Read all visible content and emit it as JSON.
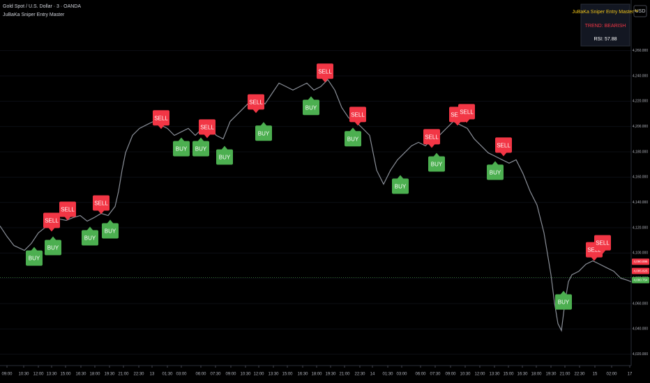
{
  "chart_data": {
    "type": "line",
    "symbol": "Gold Spot / U.S. Dollar · 3 · OANDA",
    "indicator": "JuBaKa Sniper Entry Master",
    "currency": "USD",
    "panel": {
      "title": "JuBaKa Sniper Entry Master™",
      "trend": "TREND: BEARISH",
      "rsi": "RSI: 57.88"
    },
    "xlim": [
      0,
      905
    ],
    "ylim": [
      4011,
      4300
    ],
    "x": [
      0,
      10,
      20,
      35,
      45,
      55,
      65,
      75,
      85,
      95,
      105,
      115,
      125,
      135,
      145,
      155,
      165,
      170,
      175,
      180,
      190,
      200,
      210,
      220,
      230,
      240,
      250,
      260,
      270,
      280,
      290,
      300,
      310,
      320,
      330,
      340,
      350,
      360,
      370,
      380,
      390,
      400,
      410,
      420,
      430,
      440,
      450,
      460,
      470,
      480,
      490,
      500,
      510,
      520,
      530,
      540,
      550,
      560,
      570,
      580,
      590,
      600,
      610,
      620,
      630,
      640,
      650,
      660,
      670,
      680,
      690,
      700,
      710,
      720,
      730,
      740,
      750,
      760,
      770,
      780,
      790,
      795,
      800,
      805,
      810,
      815,
      820,
      830,
      840,
      850,
      860,
      870,
      880,
      890,
      900,
      905
    ],
    "series": [
      {
        "name": "Gold Spot",
        "color": "#8a8f98",
        "values": [
          4121.4,
          4113.1,
          4105.9,
          4102.1,
          4107.6,
          4115.9,
          4120.3,
          4124.1,
          4126.9,
          4125.8,
          4128.0,
          4129.6,
          4125.2,
          4128.0,
          4131.3,
          4129.6,
          4136.8,
          4148.9,
          4165.5,
          4179.2,
          4193.0,
          4198.5,
          4201.3,
          4204.0,
          4201.3,
          4198.5,
          4193.0,
          4195.8,
          4198.5,
          4193.0,
          4198.5,
          4201.3,
          4193.0,
          4190.2,
          4204.0,
          4209.5,
          4215.0,
          4220.6,
          4223.3,
          4217.8,
          4226.1,
          4234.3,
          4231.6,
          4228.8,
          4231.6,
          4234.3,
          4228.8,
          4231.6,
          4237.1,
          4228.8,
          4215.0,
          4206.8,
          4204.0,
          4198.5,
          4193.0,
          4165.5,
          4154.4,
          4165.5,
          4173.7,
          4179.2,
          4184.7,
          4187.5,
          4184.7,
          4190.2,
          4193.0,
          4198.5,
          4204.0,
          4201.3,
          4198.5,
          4190.2,
          4184.7,
          4179.2,
          4176.5,
          4173.7,
          4171.0,
          4173.7,
          4162.7,
          4148.9,
          4137.9,
          4115.9,
          4082.8,
          4060.8,
          4044.2,
          4038.7,
          4060.8,
          4077.3,
          4082.8,
          4085.6,
          4091.1,
          4093.8,
          4091.1,
          4088.3,
          4085.6,
          4080.1,
          4078.4,
          4077.3
        ]
      }
    ],
    "signals": [
      {
        "label": "BUY",
        "x": 49,
        "y": 4104.8
      },
      {
        "label": "BUY",
        "x": 76,
        "y": 4113.1
      },
      {
        "label": "BUY",
        "x": 129,
        "y": 4120.8
      },
      {
        "label": "BUY",
        "x": 158,
        "y": 4126.3
      },
      {
        "label": "BUY",
        "x": 260,
        "y": 4191.3
      },
      {
        "label": "BUY",
        "x": 288,
        "y": 4191.3
      },
      {
        "label": "BUY",
        "x": 322,
        "y": 4184.7
      },
      {
        "label": "BUY",
        "x": 378,
        "y": 4203.5
      },
      {
        "label": "BUY",
        "x": 446,
        "y": 4223.9
      },
      {
        "label": "BUY",
        "x": 506,
        "y": 4199.1
      },
      {
        "label": "BUY",
        "x": 574,
        "y": 4161.6
      },
      {
        "label": "BUY",
        "x": 626,
        "y": 4179.2
      },
      {
        "label": "BUY",
        "x": 710,
        "y": 4172.6
      },
      {
        "label": "BUY",
        "x": 808,
        "y": 4070.1
      },
      {
        "label": "SELL",
        "x": 74,
        "y": 4117.0
      },
      {
        "label": "SELL",
        "x": 97,
        "y": 4125.8
      },
      {
        "label": "SELL",
        "x": 145,
        "y": 4130.7
      },
      {
        "label": "SELL",
        "x": 231,
        "y": 4198.0
      },
      {
        "label": "SELL",
        "x": 297,
        "y": 4190.8
      },
      {
        "label": "SELL",
        "x": 367,
        "y": 4210.6
      },
      {
        "label": "SELL",
        "x": 466,
        "y": 4234.9
      },
      {
        "label": "SELL",
        "x": 513,
        "y": 4200.7
      },
      {
        "label": "SELL",
        "x": 619,
        "y": 4183.1
      },
      {
        "label": "SELL",
        "x": 656,
        "y": 4200.7
      },
      {
        "label": "SELL",
        "x": 669,
        "y": 4202.9
      },
      {
        "label": "SELL",
        "x": 722,
        "y": 4176.5
      },
      {
        "label": "SELL",
        "x": 852,
        "y": 4093.8
      },
      {
        "label": "SELL",
        "x": 864,
        "y": 4099.3
      }
    ],
    "buy_color": "#4caf50",
    "sell_color": "#f23645",
    "yticks": [
      {
        "value": 4020,
        "label": "4,020.000"
      },
      {
        "value": 4040,
        "label": "4,040.000"
      },
      {
        "value": 4060,
        "label": "4,060.000"
      },
      {
        "value": 4080,
        "label": "4,080.000"
      },
      {
        "value": 4100,
        "label": "4,100.000"
      },
      {
        "value": 4120,
        "label": "4,120.000"
      },
      {
        "value": 4140,
        "label": "4,140.000"
      },
      {
        "value": 4160,
        "label": "4,160.000"
      },
      {
        "value": 4180,
        "label": "4,180.000"
      },
      {
        "value": 4200,
        "label": "4,200.000"
      },
      {
        "value": 4220,
        "label": "4,220.000"
      },
      {
        "value": 4240,
        "label": "4,240.000"
      },
      {
        "value": 4260,
        "label": "4,260.000"
      }
    ],
    "price_labels": [
      {
        "value": 4090.896,
        "label": "4,090.896",
        "color": "#f23645"
      },
      {
        "value": 4085.825,
        "label": "4,085.825",
        "color": "#f23645"
      },
      {
        "value": 4080.754,
        "label": "4,080.754",
        "color": "#4caf50"
      }
    ],
    "xticks": [
      {
        "value": 10,
        "label": "09:00"
      },
      {
        "value": 34,
        "label": "10:30"
      },
      {
        "value": 55,
        "label": "12:00"
      },
      {
        "value": 74,
        "label": "13:30"
      },
      {
        "value": 94,
        "label": "15:00"
      },
      {
        "value": 116,
        "label": "16:30"
      },
      {
        "value": 136,
        "label": "18:00"
      },
      {
        "value": 157,
        "label": "19:30"
      },
      {
        "value": 177,
        "label": "21:00"
      },
      {
        "value": 199,
        "label": "22:30"
      },
      {
        "value": 218,
        "label": "13"
      },
      {
        "value": 240,
        "label": "01:30"
      },
      {
        "value": 260,
        "label": "03:00"
      },
      {
        "value": 288,
        "label": "06:00"
      },
      {
        "value": 309,
        "label": "07:30"
      },
      {
        "value": 331,
        "label": "09:00"
      },
      {
        "value": 352,
        "label": "10:30"
      },
      {
        "value": 371,
        "label": "12:00"
      },
      {
        "value": 392,
        "label": "13:30"
      },
      {
        "value": 412,
        "label": "15:00"
      },
      {
        "value": 434,
        "label": "16:30"
      },
      {
        "value": 454,
        "label": "18:00"
      },
      {
        "value": 474,
        "label": "19:30"
      },
      {
        "value": 494,
        "label": "21:00"
      },
      {
        "value": 516,
        "label": "22:30"
      },
      {
        "value": 534,
        "label": "14"
      },
      {
        "value": 556,
        "label": "01:30"
      },
      {
        "value": 576,
        "label": "03:00"
      },
      {
        "value": 603,
        "label": "06:00"
      },
      {
        "value": 624,
        "label": "07:30"
      },
      {
        "value": 646,
        "label": "09:00"
      },
      {
        "value": 667,
        "label": "10:30"
      },
      {
        "value": 688,
        "label": "12:00"
      },
      {
        "value": 709,
        "label": "13:30"
      },
      {
        "value": 729,
        "label": "15:00"
      },
      {
        "value": 749,
        "label": "16:30"
      },
      {
        "value": 769,
        "label": "18:00"
      },
      {
        "value": 790,
        "label": "19:30"
      },
      {
        "value": 810,
        "label": "21:00"
      },
      {
        "value": 831,
        "label": "22:30"
      },
      {
        "value": 853,
        "label": "15"
      },
      {
        "value": 877,
        "label": "02:00"
      },
      {
        "value": 903,
        "label": "17"
      }
    ]
  }
}
